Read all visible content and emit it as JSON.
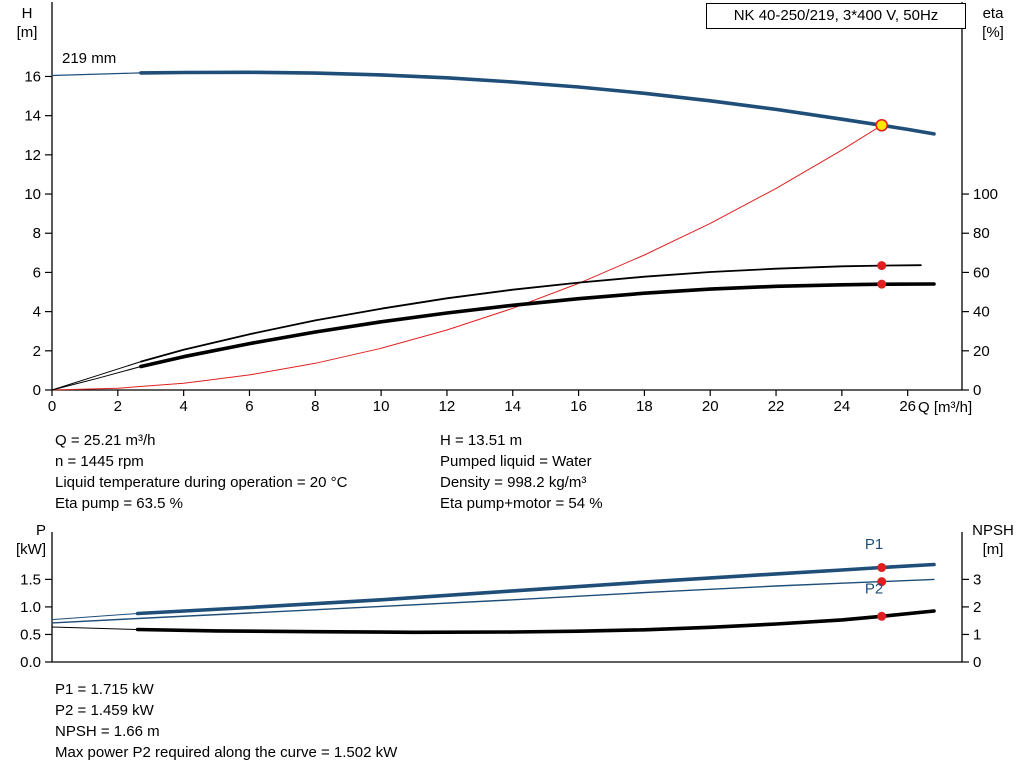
{
  "info_top": {
    "left": [
      "Q = 25.21 m³/h",
      "n = 1445 rpm",
      "Liquid temperature during operation = 20 °C",
      "Eta pump = 63.5 %"
    ],
    "right": [
      "H = 13.51 m",
      "Pumped liquid = Water",
      "Density = 998.2 kg/m³",
      "Eta pump+motor = 54 %"
    ]
  },
  "info_bottom": [
    "P1 = 1.715 kW",
    "P2 = 1.459 kW",
    "NPSH = 1.66 m",
    "Max power P2 required along the curve = 1.502 kW"
  ],
  "colors": {
    "curve_blue": "#1f4e79",
    "curve_red": "#e02020",
    "duty_yellow": "#ffe600",
    "curve_black": "#000000"
  },
  "chart_data": [
    {
      "type": "line",
      "name": "qh-eta-chart",
      "title_box": "NK 40-250/219, 3*400 V, 50Hz",
      "impeller_label": "219 mm",
      "xlabel": "Q [m³/h]",
      "ylabel_left": [
        "H",
        "[m]"
      ],
      "ylabel_right": [
        "eta",
        "[%]"
      ],
      "xlim": [
        0,
        27.65
      ],
      "ylim_left": [
        0,
        19.8
      ],
      "ylim_right": [
        0,
        198
      ],
      "xticks": [
        {
          "v": 0,
          "label": "0"
        },
        {
          "v": 2,
          "label": "2"
        },
        {
          "v": 4,
          "label": "4"
        },
        {
          "v": 6,
          "label": "6"
        },
        {
          "v": 8,
          "label": "8"
        },
        {
          "v": 10,
          "label": "10"
        },
        {
          "v": 12,
          "label": "12"
        },
        {
          "v": 14,
          "label": "14"
        },
        {
          "v": 16,
          "label": "16"
        },
        {
          "v": 18,
          "label": "18"
        },
        {
          "v": 20,
          "label": "20"
        },
        {
          "v": 22,
          "label": "22"
        },
        {
          "v": 24,
          "label": "24"
        },
        {
          "v": 26,
          "label": "26"
        }
      ],
      "yticks_left": [
        {
          "v": 0,
          "label": "0"
        },
        {
          "v": 2,
          "label": "2"
        },
        {
          "v": 4,
          "label": "4"
        },
        {
          "v": 6,
          "label": "6"
        },
        {
          "v": 8,
          "label": "8"
        },
        {
          "v": 10,
          "label": "10"
        },
        {
          "v": 12,
          "label": "12"
        },
        {
          "v": 14,
          "label": "14"
        },
        {
          "v": 16,
          "label": "16"
        }
      ],
      "yticks_right": [
        {
          "v": 0,
          "label": "0"
        },
        {
          "v": 20,
          "label": "20"
        },
        {
          "v": 40,
          "label": "40"
        },
        {
          "v": 60,
          "label": "60"
        },
        {
          "v": 80,
          "label": "80"
        },
        {
          "v": 100,
          "label": "100"
        }
      ],
      "series": [
        {
          "name": "head-curve-lead",
          "axis": "left",
          "color": "#1f4e79",
          "width": 1.2,
          "points": [
            [
              0,
              16.05
            ],
            [
              1.4,
              16.12
            ],
            [
              2.7,
              16.18
            ]
          ]
        },
        {
          "name": "head-curve",
          "axis": "left",
          "color": "#1f4e79",
          "width": 3.6,
          "points": [
            [
              2.7,
              16.18
            ],
            [
              4,
              16.2
            ],
            [
              6,
              16.21
            ],
            [
              8,
              16.17
            ],
            [
              10,
              16.08
            ],
            [
              12,
              15.93
            ],
            [
              14,
              15.72
            ],
            [
              16,
              15.46
            ],
            [
              18,
              15.14
            ],
            [
              20,
              14.76
            ],
            [
              22,
              14.32
            ],
            [
              24,
              13.82
            ],
            [
              25.21,
              13.51
            ],
            [
              26,
              13.3
            ],
            [
              26.8,
              13.07
            ]
          ]
        },
        {
          "name": "affinity-parabola",
          "axis": "left",
          "color": "#e02020",
          "width": 1,
          "points": [
            [
              0,
              0
            ],
            [
              2,
              0.09
            ],
            [
              4,
              0.34
            ],
            [
              6,
              0.77
            ],
            [
              8,
              1.36
            ],
            [
              10,
              2.13
            ],
            [
              12,
              3.06
            ],
            [
              14,
              4.17
            ],
            [
              16,
              5.44
            ],
            [
              18,
              6.89
            ],
            [
              20,
              8.5
            ],
            [
              22,
              10.29
            ],
            [
              24,
              12.24
            ],
            [
              25.21,
              13.51
            ]
          ]
        },
        {
          "name": "eta-pump-lead",
          "axis": "right",
          "color": "#000000",
          "width": 1,
          "points": [
            [
              0,
              0
            ],
            [
              1.4,
              7.5
            ],
            [
              2.7,
              14.5
            ]
          ]
        },
        {
          "name": "eta-pump-curve",
          "axis": "right",
          "color": "#000000",
          "width": 1.8,
          "points": [
            [
              2.7,
              14.5
            ],
            [
              4,
              20.5
            ],
            [
              6,
              28.5
            ],
            [
              8,
              35.5
            ],
            [
              10,
              41.5
            ],
            [
              12,
              46.8
            ],
            [
              14,
              51.2
            ],
            [
              16,
              54.8
            ],
            [
              18,
              57.8
            ],
            [
              20,
              60.2
            ],
            [
              22,
              61.9
            ],
            [
              24,
              63.1
            ],
            [
              25.21,
              63.5
            ],
            [
              26.4,
              63.7
            ]
          ]
        },
        {
          "name": "eta-pump-motor-lead",
          "axis": "right",
          "color": "#000000",
          "width": 1,
          "points": [
            [
              0,
              0
            ],
            [
              1.4,
              6
            ],
            [
              2.7,
              12
            ]
          ]
        },
        {
          "name": "eta-pump-motor-curve",
          "axis": "right",
          "color": "#000000",
          "width": 3.6,
          "points": [
            [
              2.7,
              12
            ],
            [
              4,
              17
            ],
            [
              6,
              23.7
            ],
            [
              8,
              29.6
            ],
            [
              10,
              34.8
            ],
            [
              12,
              39.3
            ],
            [
              14,
              43.2
            ],
            [
              16,
              46.6
            ],
            [
              18,
              49.4
            ],
            [
              20,
              51.5
            ],
            [
              22,
              52.9
            ],
            [
              24,
              53.7
            ],
            [
              25.21,
              54
            ],
            [
              26.8,
              54.1
            ]
          ]
        }
      ],
      "markers": [
        {
          "name": "duty-point",
          "axis": "left",
          "x": 25.21,
          "y": 13.51,
          "r": 5.5,
          "fill": "#ffe600",
          "stroke": "#e02020",
          "stroke_width": 1.6,
          "interactable": "true"
        },
        {
          "name": "eta-pump-point",
          "axis": "right",
          "x": 25.21,
          "y": 63.5,
          "r": 4.5,
          "fill": "#e02020",
          "stroke": "none",
          "stroke_width": 0,
          "interactable": "false"
        },
        {
          "name": "eta-pump-motor-point",
          "axis": "right",
          "x": 25.21,
          "y": 54,
          "r": 4.5,
          "fill": "#e02020",
          "stroke": "none",
          "stroke_width": 0,
          "interactable": "false"
        }
      ],
      "curve_labels": []
    },
    {
      "type": "line",
      "name": "power-npsh-chart",
      "ylabel_left": [
        "P",
        "[kW]"
      ],
      "ylabel_right": [
        "NPSH",
        "[m]"
      ],
      "xlim": [
        0,
        27.65
      ],
      "ylim_left": [
        0,
        2.36
      ],
      "ylim_right": [
        0,
        4.72
      ],
      "xticks": [],
      "yticks_left": [
        {
          "v": 0,
          "label": "0.0"
        },
        {
          "v": 0.5,
          "label": "0.5"
        },
        {
          "v": 1,
          "label": "1.0"
        },
        {
          "v": 1.5,
          "label": "1.5"
        }
      ],
      "yticks_right": [
        {
          "v": 0,
          "label": "0"
        },
        {
          "v": 1,
          "label": "1"
        },
        {
          "v": 2,
          "label": "2"
        },
        {
          "v": 3,
          "label": "3"
        }
      ],
      "series": [
        {
          "name": "p1-lead",
          "axis": "left",
          "color": "#1f4e79",
          "width": 1,
          "points": [
            [
              0,
              0.77
            ],
            [
              2.6,
              0.88
            ]
          ]
        },
        {
          "name": "p1-curve",
          "axis": "left",
          "color": "#1f4e79",
          "width": 3.6,
          "points": [
            [
              2.6,
              0.88
            ],
            [
              6,
              0.99
            ],
            [
              10,
              1.13
            ],
            [
              14,
              1.29
            ],
            [
              18,
              1.45
            ],
            [
              22,
              1.6
            ],
            [
              24,
              1.67
            ],
            [
              25.21,
              1.715
            ],
            [
              26.8,
              1.77
            ]
          ]
        },
        {
          "name": "p2-curve",
          "axis": "left",
          "color": "#1f4e79",
          "width": 1.4,
          "points": [
            [
              0,
              0.71
            ],
            [
              2.6,
              0.79
            ],
            [
              6,
              0.89
            ],
            [
              10,
              1.01
            ],
            [
              14,
              1.13
            ],
            [
              18,
              1.26
            ],
            [
              22,
              1.38
            ],
            [
              24,
              1.43
            ],
            [
              25.21,
              1.459
            ],
            [
              26.8,
              1.5
            ]
          ]
        },
        {
          "name": "npsh-lead",
          "axis": "right",
          "color": "#000000",
          "width": 1,
          "points": [
            [
              0,
              1.27
            ],
            [
              2.6,
              1.18
            ]
          ]
        },
        {
          "name": "npsh-curve",
          "axis": "right",
          "color": "#000000",
          "width": 3.6,
          "points": [
            [
              2.6,
              1.18
            ],
            [
              5,
              1.13
            ],
            [
              8,
              1.1
            ],
            [
              11,
              1.08
            ],
            [
              14,
              1.09
            ],
            [
              16,
              1.12
            ],
            [
              18,
              1.17
            ],
            [
              20,
              1.26
            ],
            [
              22,
              1.38
            ],
            [
              24,
              1.53
            ],
            [
              25.21,
              1.66
            ],
            [
              26.8,
              1.85
            ]
          ]
        }
      ],
      "markers": [
        {
          "name": "p1-point",
          "axis": "left",
          "x": 25.21,
          "y": 1.715,
          "r": 4.5,
          "fill": "#e02020",
          "stroke": "none",
          "stroke_width": 0,
          "interactable": "false"
        },
        {
          "name": "p2-point",
          "axis": "left",
          "x": 25.21,
          "y": 1.459,
          "r": 4.5,
          "fill": "#e02020",
          "stroke": "none",
          "stroke_width": 0,
          "interactable": "false"
        },
        {
          "name": "npsh-point",
          "axis": "right",
          "x": 25.21,
          "y": 1.66,
          "r": 4.5,
          "fill": "#e02020",
          "stroke": "none",
          "stroke_width": 0,
          "interactable": "false"
        }
      ],
      "curve_labels": [
        {
          "text": "P1",
          "x": 24.7,
          "y": 2.05,
          "color": "#1f4e79"
        },
        {
          "text": "P2",
          "x": 24.7,
          "y": 1.24,
          "color": "#1f4e79"
        }
      ]
    }
  ]
}
